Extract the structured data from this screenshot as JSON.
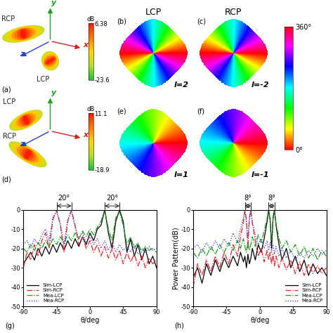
{
  "chart_data": [
    {
      "type": "radiation_3d",
      "panel": "(a)",
      "axis_names": [
        "x",
        "y",
        "z"
      ],
      "beams": [
        {
          "name": "RCP"
        },
        {
          "name": "LCP"
        }
      ],
      "colorbar_label": "dB",
      "colorbar_lim": [
        -23.6,
        6.38
      ],
      "colorbar_ticks": [
        6.38,
        -23.6
      ]
    },
    {
      "type": "oam_phase",
      "panel": "(b)",
      "title": "LCP",
      "l": 2,
      "mode_label": "l=2"
    },
    {
      "type": "oam_phase",
      "panel": "(c)",
      "title": "RCP",
      "l": -2,
      "mode_label": "l=-2"
    },
    {
      "type": "radiation_3d",
      "panel": "(d)",
      "axis_names": [
        "x",
        "y",
        "z"
      ],
      "beams": [
        {
          "name": "LCP"
        },
        {
          "name": "RCP"
        }
      ],
      "colorbar_label": "dB",
      "colorbar_lim": [
        -18.9,
        11.1
      ],
      "colorbar_ticks": [
        11.1,
        -18.9
      ]
    },
    {
      "type": "oam_phase",
      "panel": "(e)",
      "l": 1,
      "mode_label": "l=1"
    },
    {
      "type": "oam_phase",
      "panel": "(f)",
      "l": -1,
      "mode_label": "l=-1"
    },
    {
      "type": "line",
      "panel": "(g)",
      "xlabel": "θ/deg",
      "x": [
        -90,
        -85,
        -80,
        -75,
        -70,
        -65,
        -60,
        -55,
        -50,
        -45,
        -40,
        -35,
        -30,
        -25,
        -20,
        -15,
        -10,
        -5,
        0,
        5,
        10,
        15,
        20,
        25,
        30,
        35,
        40,
        45,
        50,
        55,
        60,
        65,
        70,
        75,
        80,
        85,
        90
      ],
      "xlim": [
        -90,
        90
      ],
      "xticks": [
        -90,
        -45,
        0,
        45,
        90
      ],
      "ylim": [
        -50,
        0
      ],
      "yticks": [
        -50,
        -40,
        -30,
        -20,
        -10,
        0
      ],
      "legend": "lower left",
      "series": [
        {
          "name": "Sim-LCP",
          "color": "#000000",
          "line_style": "solid",
          "values": [
            -28,
            -25,
            -22,
            -26,
            -20,
            -24,
            -19,
            -23,
            -18,
            -22,
            -17,
            -21,
            -16,
            -20,
            -15,
            -19,
            -14,
            -18,
            -12,
            -16,
            -10,
            -8,
            0,
            -12,
            -20,
            -6,
            0,
            -6,
            -22,
            -15,
            -24,
            -18,
            -26,
            -20,
            -28,
            -24,
            -30
          ]
        },
        {
          "name": "Sim-RCP",
          "color": "#e8202a",
          "line_style": "dash_dot",
          "values": [
            -30,
            -22,
            -26,
            -18,
            -24,
            -16,
            -12,
            -20,
            -5,
            0,
            -8,
            -22,
            -6,
            0,
            -8,
            -18,
            -14,
            -20,
            -16,
            -22,
            -18,
            -24,
            -19,
            -25,
            -20,
            -26,
            -21,
            -28,
            -22,
            -27,
            -23,
            -29,
            -24,
            -30,
            -25,
            -28,
            -26
          ]
        },
        {
          "name": "Mea-LCP",
          "color": "#1a9a1a",
          "line_style": "dash_dot",
          "values": [
            -20,
            -22,
            -18,
            -21,
            -17,
            -20,
            -16,
            -19,
            -15,
            -18,
            -14,
            -17,
            -13,
            -16,
            -12,
            -15,
            -11,
            -14,
            -10,
            -13,
            -9,
            -6,
            0,
            -10,
            -16,
            -4,
            -1,
            -8,
            -18,
            -14,
            -20,
            -17,
            -22,
            -19,
            -21,
            -20,
            -22
          ]
        },
        {
          "name": "Mea-RCP",
          "color": "#3333cc",
          "line_style": "dotted",
          "values": [
            -18,
            -16,
            -20,
            -15,
            -18,
            -13,
            -10,
            -16,
            -4,
            -1,
            -7,
            -18,
            -5,
            -1,
            -9,
            -15,
            -12,
            -17,
            -14,
            -18,
            -15,
            -20,
            -16,
            -21,
            -17,
            -22,
            -18,
            -21,
            -19,
            -22,
            -18,
            -23,
            -20,
            -22,
            -19,
            -21,
            -20
          ]
        }
      ],
      "annotations": [
        {
          "text": "20°",
          "x_from": -45,
          "x_to": -25
        },
        {
          "text": "20°",
          "x_from": 20,
          "x_to": 40
        }
      ]
    },
    {
      "type": "line",
      "panel": "(h)",
      "xlabel": "θ/deg",
      "ylabel": "Power Pattern(dB)",
      "x": [
        -90,
        -84,
        -78,
        -72,
        -66,
        -60,
        -54,
        -48,
        -42,
        -36,
        -30,
        -26,
        -22,
        -20,
        -18,
        -16,
        -14,
        -12,
        -10,
        -6,
        -2,
        2,
        6,
        10,
        12,
        14,
        16,
        18,
        20,
        22,
        26,
        30,
        36,
        42,
        48,
        54,
        60,
        66,
        72,
        78,
        84,
        90
      ],
      "xlim": [
        -90,
        90
      ],
      "xticks": [
        -90,
        -45,
        0,
        45,
        90
      ],
      "ylim": [
        -50,
        0
      ],
      "yticks": [
        -50,
        -40,
        -30,
        -20,
        -10,
        0
      ],
      "legend": "lower right",
      "series": [
        {
          "name": "Sim-LCP",
          "color": "#000000",
          "line_style": "solid",
          "values": [
            -35,
            -30,
            -38,
            -28,
            -34,
            -26,
            -32,
            -25,
            -30,
            -24,
            -29,
            -22,
            -27,
            -24,
            -30,
            -23,
            -28,
            -25,
            -20,
            -26,
            -18,
            -22,
            -15,
            -6,
            0,
            -5,
            -20,
            -4,
            0,
            -8,
            -18,
            -26,
            -20,
            -30,
            -24,
            -32,
            -26,
            -34,
            -28,
            -33,
            -30,
            -34
          ]
        },
        {
          "name": "Sim-RCP",
          "color": "#e8202a",
          "line_style": "dash_dot",
          "values": [
            -40,
            -28,
            -34,
            -26,
            -32,
            -24,
            -30,
            -22,
            -28,
            -18,
            -24,
            -14,
            -6,
            0,
            -5,
            -20,
            -4,
            0,
            -7,
            -16,
            -24,
            -20,
            -27,
            -21,
            -26,
            -22,
            -28,
            -23,
            -29,
            -24,
            -30,
            -25,
            -31,
            -26,
            -33,
            -27,
            -34,
            -28,
            -33,
            -29,
            -33,
            -30
          ]
        },
        {
          "name": "Mea-LCP",
          "color": "#1a9a1a",
          "line_style": "dash_dot",
          "values": [
            -22,
            -25,
            -20,
            -24,
            -19,
            -23,
            -18,
            -22,
            -17,
            -21,
            -16,
            -20,
            -15,
            -19,
            -22,
            -17,
            -21,
            -18,
            -14,
            -19,
            -13,
            -17,
            -11,
            -4,
            -1,
            -6,
            -16,
            -5,
            -1,
            -7,
            -15,
            -20,
            -16,
            -22,
            -18,
            -24,
            -19,
            -25,
            -20,
            -26,
            -21,
            -24
          ]
        },
        {
          "name": "Mea-RCP",
          "color": "#3333cc",
          "line_style": "dotted",
          "values": [
            -20,
            -18,
            -22,
            -17,
            -21,
            -16,
            -20,
            -15,
            -19,
            -12,
            -17,
            -10,
            -4,
            -1,
            -6,
            -15,
            -5,
            -1,
            -6,
            -13,
            -18,
            -15,
            -20,
            -16,
            -21,
            -17,
            -22,
            -18,
            -23,
            -19,
            -24,
            -20,
            -25,
            -21,
            -26,
            -22,
            -25,
            -21,
            -24,
            -20,
            -23,
            -21
          ]
        }
      ],
      "annotations": [
        {
          "text": "8°",
          "x_from": -20,
          "x_to": -12
        },
        {
          "text": "8°",
          "x_from": 12,
          "x_to": 20
        }
      ]
    }
  ],
  "phase_colorbar": {
    "lim": [
      0,
      360
    ],
    "ticks": [
      {
        "value": 0,
        "label": "0°"
      },
      {
        "value": 360,
        "label": "360°"
      }
    ]
  }
}
